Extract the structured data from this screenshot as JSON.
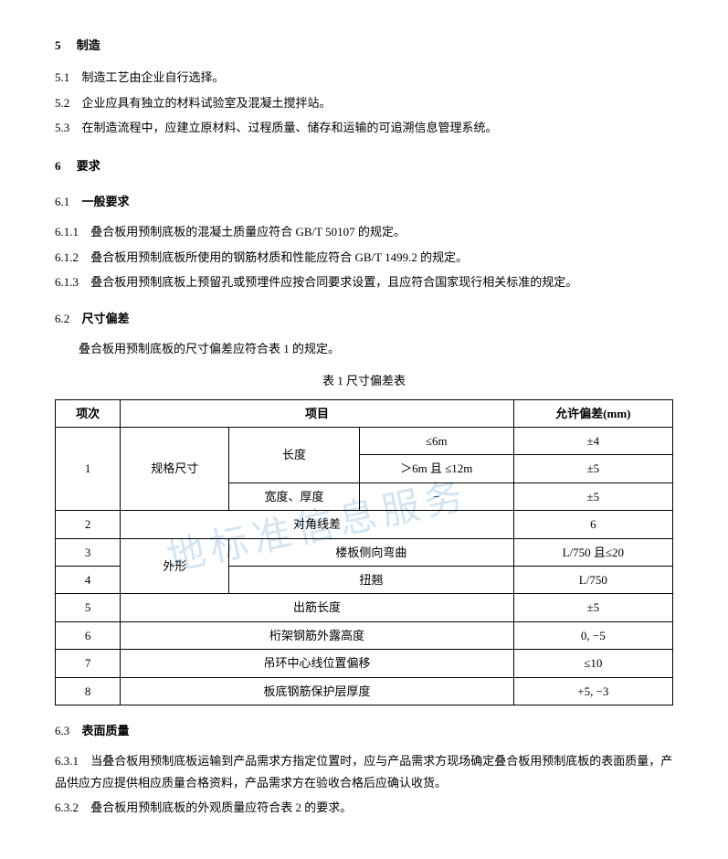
{
  "watermark": "地标准信息服务",
  "sec5": {
    "num": "5",
    "title": "制造",
    "items": [
      {
        "num": "5.1",
        "text": "制造工艺由企业自行选择。"
      },
      {
        "num": "5.2",
        "text": "企业应具有独立的材料试验室及混凝土搅拌站。"
      },
      {
        "num": "5.3",
        "text": "在制造流程中，应建立原材料、过程质量、储存和运输的可追溯信息管理系统。"
      }
    ]
  },
  "sec6": {
    "num": "6",
    "title": "要求"
  },
  "sub61": {
    "num": "6.1",
    "title": "一般要求",
    "items": [
      {
        "num": "6.1.1",
        "text": "叠合板用预制底板的混凝土质量应符合 GB/T 50107 的规定。"
      },
      {
        "num": "6.1.2",
        "text": "叠合板用预制底板所使用的钢筋材质和性能应符合 GB/T 1499.2 的规定。"
      },
      {
        "num": "6.1.3",
        "text": "叠合板用预制底板上预留孔或预埋件应按合同要求设置，且应符合国家现行相关标准的规定。"
      }
    ]
  },
  "sub62": {
    "num": "6.2",
    "title": "尺寸偏差",
    "intro": "叠合板用预制底板的尺寸偏差应符合表 1 的规定。",
    "tableTitle": "表 1   尺寸偏差表",
    "headers": {
      "c1": "项次",
      "c2": "项目",
      "c3": "允许偏差(mm)"
    },
    "r1": {
      "n": "1",
      "cat": "规格尺寸",
      "item": "长度",
      "cond1": "≤6m",
      "tol1": "±4",
      "cond2": "＞6m 且 ≤12m",
      "tol2": "±5",
      "item2": "宽度、厚度",
      "cond3": "−",
      "tol3": "±5"
    },
    "r2": {
      "n": "2",
      "item": "对角线差",
      "tol": "6"
    },
    "r3": {
      "n": "3",
      "cat": "外形",
      "item": "楼板侧向弯曲",
      "tol": "L/750 且≤20"
    },
    "r4": {
      "n": "4",
      "item": "扭翘",
      "tol": "L/750"
    },
    "r5": {
      "n": "5",
      "item": "出筋长度",
      "tol": "±5"
    },
    "r6": {
      "n": "6",
      "item": "桁架钢筋外露高度",
      "tol": "0, −5"
    },
    "r7": {
      "n": "7",
      "item": "吊环中心线位置偏移",
      "tol": "≤10"
    },
    "r8": {
      "n": "8",
      "item": "板底钢筋保护层厚度",
      "tol": "+5, −3"
    }
  },
  "sub63": {
    "num": "6.3",
    "title": "表面质量",
    "items": [
      {
        "num": "6.3.1",
        "text": "当叠合板用预制底板运输到产品需求方指定位置时，应与产品需求方现场确定叠合板用预制底板的表面质量，产品供应方应提供相应质量合格资料，产品需求方在验收合格后应确认收货。"
      },
      {
        "num": "6.3.2",
        "text": "叠合板用预制底板的外观质量应符合表 2 的要求。"
      }
    ]
  }
}
